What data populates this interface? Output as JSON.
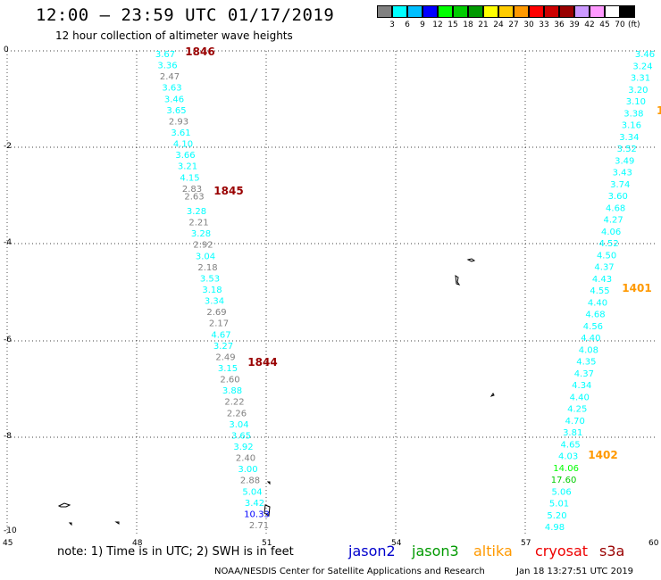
{
  "title": "12:00 – 23:59 UTC 01/17/2019",
  "subtitle": "12 hour collection of altimeter wave heights",
  "colorbar": {
    "colors": [
      "#808080",
      "#00ffff",
      "#00bfff",
      "#0000ff",
      "#00ff00",
      "#00cc00",
      "#009900",
      "#ffff00",
      "#ffcc00",
      "#ff9900",
      "#ff0000",
      "#cc0000",
      "#990000",
      "#cc99ff",
      "#ff99ff",
      "#ffffff",
      "#000000"
    ],
    "labels": [
      "3",
      "6",
      "9",
      "12",
      "15",
      "18",
      "21",
      "24",
      "27",
      "30",
      "33",
      "36",
      "39",
      "42",
      "45",
      "70"
    ],
    "unit": "(ft)"
  },
  "axes": {
    "lon_labels": [
      "45",
      "48",
      "51",
      "54",
      "57",
      "60"
    ],
    "lat_labels": [
      "0",
      "-2",
      "-4",
      "-6",
      "-8",
      "-10"
    ]
  },
  "track_times": [
    "1846",
    "1845",
    "1844",
    "1401",
    "1402"
  ],
  "track_west": [
    "3.67",
    "3.36",
    "2.47",
    "3.63",
    "3.46",
    "3.65",
    "2.93",
    "3.61",
    "4.10",
    "3.66",
    "3.21",
    "4.15",
    "2.83",
    "2.63",
    "3.28",
    "2.21",
    "3.28",
    "2.92",
    "3.04",
    "2.18",
    "3.53",
    "3.18",
    "3.34",
    "2.69",
    "2.17",
    "4.67",
    "3.27",
    "2.49",
    "3.15",
    "2.60",
    "3.88",
    "2.22",
    "2.26",
    "3.04",
    "3.65",
    "3.92",
    "2.40",
    "3.00",
    "2.88",
    "5.04",
    "3.42",
    "10.33",
    "2.71"
  ],
  "track_east": [
    "3.46",
    "3.24",
    "3.31",
    "3.20",
    "3.10",
    "3.38",
    "3.16",
    "3.34",
    "3.52",
    "3.49",
    "3.43",
    "3.74",
    "3.60",
    "4.68",
    "4.27",
    "4.06",
    "4.52",
    "4.50",
    "4.37",
    "4.43",
    "4.55",
    "4.40",
    "4.68",
    "4.56",
    "4.40",
    "4.08",
    "4.35",
    "4.37",
    "4.34",
    "4.40",
    "4.25",
    "4.70",
    "3.81",
    "4.65",
    "4.03",
    "14.06",
    "17.60",
    "5.06",
    "5.01",
    "5.20",
    "4.98"
  ],
  "edge_label": "1",
  "note": "note:  1) Time is in UTC;  2) SWH is in feet",
  "satellites": [
    {
      "name": "jason2",
      "color": "#0000cc"
    },
    {
      "name": "jason3",
      "color": "#009900"
    },
    {
      "name": "altika",
      "color": "#ff9900"
    },
    {
      "name": "cryosat",
      "color": "#ee0000"
    },
    {
      "name": "s3a",
      "color": "#990000"
    }
  ],
  "credit": "NOAA/NESDIS Center for Satellite Applications and Research",
  "timestamp": "Jan 18 13:27:51 UTC 2019"
}
